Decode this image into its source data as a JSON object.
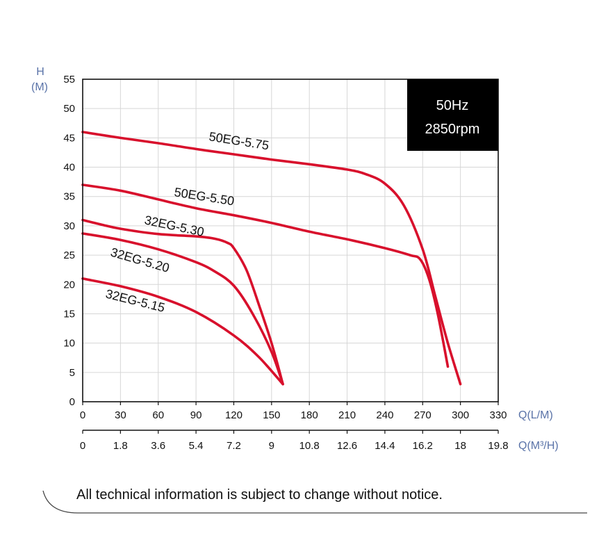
{
  "chart_data": {
    "type": "line",
    "y_axis": {
      "label_line1": "H",
      "label_line2": "(M)",
      "ylim": [
        0,
        55
      ],
      "ticks": [
        "0",
        "5",
        "10",
        "15",
        "20",
        "25",
        "30",
        "35",
        "40",
        "45",
        "50",
        "55"
      ]
    },
    "x_axis_primary": {
      "label": "Q(L/M)",
      "xlim": [
        0,
        330
      ],
      "ticks": [
        "0",
        "30",
        "60",
        "90",
        "120",
        "150",
        "180",
        "210",
        "240",
        "270",
        "300",
        "330"
      ]
    },
    "x_axis_secondary": {
      "label": "Q(M³/H)",
      "ticks": [
        "0",
        "1.8",
        "3.6",
        "5.4",
        "7.2",
        "9",
        "10.8",
        "12.6",
        "14.4",
        "16.2",
        "18",
        "19.8"
      ]
    },
    "grid": true,
    "badge": {
      "line1": "50Hz",
      "line2": "2850rpm"
    },
    "series": [
      {
        "name": "50EG-5.75",
        "color": "#d8102c",
        "x": [
          0,
          30,
          60,
          90,
          120,
          150,
          180,
          210,
          225,
          240,
          255,
          270,
          280,
          290,
          300
        ],
        "y": [
          46,
          45.0,
          44.1,
          43.1,
          42.2,
          41.3,
          40.5,
          39.6,
          38.8,
          37.2,
          33.5,
          26,
          18,
          10,
          3
        ]
      },
      {
        "name": "50EG-5.50",
        "color": "#d8102c",
        "x": [
          0,
          30,
          60,
          90,
          120,
          150,
          180,
          210,
          240,
          260,
          268,
          275,
          282,
          290
        ],
        "y": [
          37,
          36.0,
          34.5,
          33.0,
          31.8,
          30.5,
          29.0,
          27.7,
          26.2,
          25.0,
          24.3,
          21,
          15,
          6
        ]
      },
      {
        "name": "32EG-5.30",
        "color": "#d8102c",
        "x": [
          0,
          15,
          30,
          60,
          90,
          105,
          115,
          120,
          130,
          140,
          150,
          159
        ],
        "y": [
          31,
          30.2,
          29.5,
          28.6,
          28.2,
          27.8,
          27.1,
          26.2,
          22.5,
          16.5,
          10,
          3
        ]
      },
      {
        "name": "32EG-5.20",
        "color": "#d8102c",
        "x": [
          0,
          30,
          60,
          90,
          105,
          120,
          135,
          150,
          159
        ],
        "y": [
          28.7,
          27.6,
          26.0,
          23.8,
          22.2,
          19.8,
          15,
          8.5,
          3
        ]
      },
      {
        "name": "32EG-5.15",
        "color": "#d8102c",
        "x": [
          0,
          30,
          60,
          90,
          120,
          140,
          159
        ],
        "y": [
          21,
          19.7,
          17.9,
          15.3,
          11.3,
          7.6,
          3
        ]
      }
    ]
  },
  "notice": "All technical information is subject to change without notice."
}
